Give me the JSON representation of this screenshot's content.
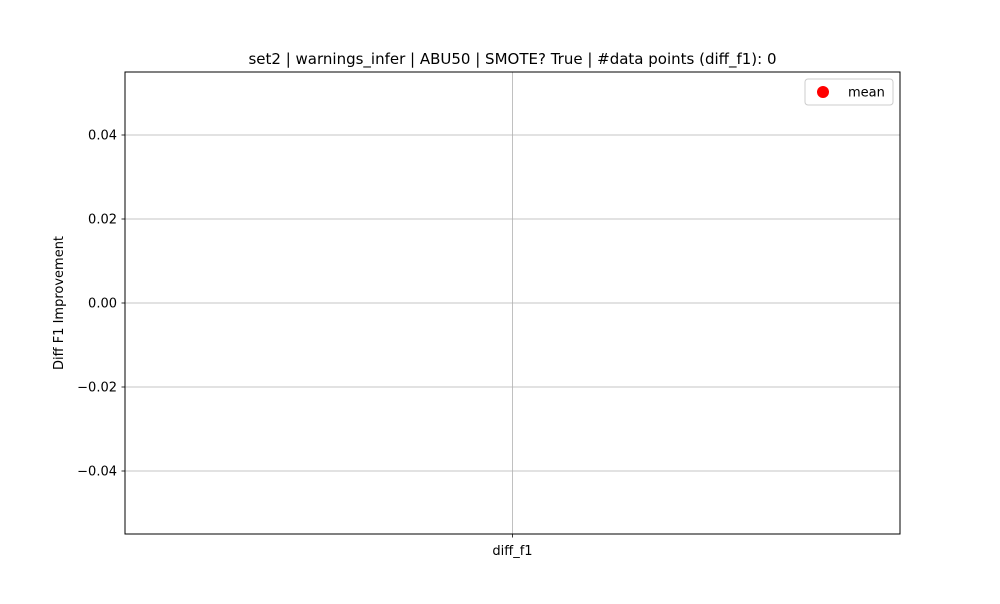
{
  "chart_data": {
    "type": "scatter",
    "title": "set2 | warnings_infer | ABU50 | SMOTE? True | #data points (diff_f1): 0",
    "xlabel": "",
    "ylabel": "Diff F1 Improvement",
    "categories": [
      "diff_f1"
    ],
    "ylim": [
      -0.055,
      0.055
    ],
    "yticks": [
      -0.04,
      -0.02,
      0.0,
      0.02,
      0.04
    ],
    "ytick_labels": [
      "−0.04",
      "−0.02",
      "0.00",
      "0.02",
      "0.04"
    ],
    "grid": true,
    "legend": {
      "position": "top-right",
      "entries": [
        {
          "label": "mean",
          "color": "#ff0000",
          "marker": "circle"
        }
      ]
    },
    "series": [
      {
        "name": "mean",
        "color": "#ff0000",
        "values": []
      }
    ]
  }
}
